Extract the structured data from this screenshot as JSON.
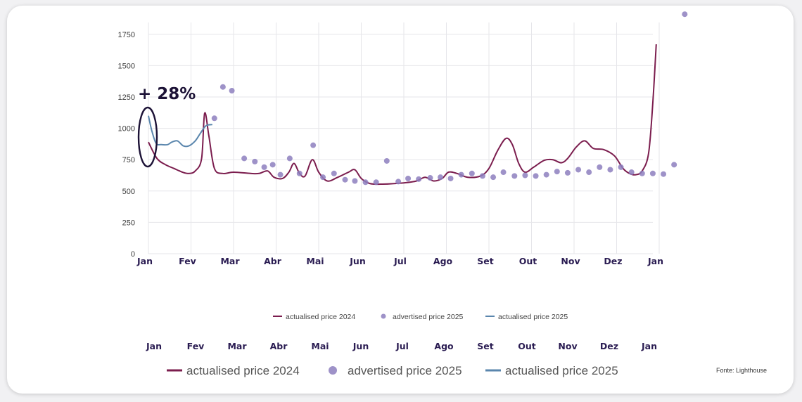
{
  "colors": {
    "actualised_2024": "#7b1d4e",
    "advertised_2025": "#8d7fbe",
    "actualised_2025": "#5a86ad",
    "month_text": "#2a1c52"
  },
  "annotation": "+ 28%",
  "source": "Fonte: Lighthouse",
  "months_secondary": [
    "Jan",
    "Fev",
    "Mar",
    "Abr",
    "Mai",
    "Jun",
    "Jul",
    "Ago",
    "Set",
    "Out",
    "Nov",
    "Dez",
    "Jan"
  ],
  "legend_secondary": [
    "actualised price 2024",
    "advertised price 2025",
    "actualised price 2025"
  ],
  "chart_data": {
    "type": "line",
    "title": "",
    "xlabel": "",
    "ylabel": "",
    "ylim": [
      0,
      1900
    ],
    "yticks": [
      0,
      250,
      500,
      750,
      1000,
      1250,
      1500,
      1750
    ],
    "categories": [
      "Jan",
      "Fev",
      "Mar",
      "Abr",
      "Mai",
      "Jun",
      "Jul",
      "Ago",
      "Set",
      "Out",
      "Nov",
      "Dez",
      "Jan"
    ],
    "grid": true,
    "legend_position": "bottom",
    "series": [
      {
        "name": "actualised price 2024",
        "style": "line",
        "points": [
          [
            0,
            890
          ],
          [
            0.2,
            760
          ],
          [
            0.4,
            710
          ],
          [
            0.6,
            680
          ],
          [
            0.8,
            650
          ],
          [
            0.95,
            640
          ],
          [
            1.1,
            660
          ],
          [
            1.25,
            760
          ],
          [
            1.32,
            1120
          ],
          [
            1.42,
            940
          ],
          [
            1.55,
            680
          ],
          [
            1.75,
            640
          ],
          [
            2.0,
            650
          ],
          [
            2.4,
            640
          ],
          [
            2.6,
            640
          ],
          [
            2.8,
            660
          ],
          [
            2.95,
            610
          ],
          [
            3.15,
            600
          ],
          [
            3.3,
            650
          ],
          [
            3.42,
            720
          ],
          [
            3.55,
            640
          ],
          [
            3.68,
            620
          ],
          [
            3.85,
            750
          ],
          [
            4.0,
            650
          ],
          [
            4.2,
            580
          ],
          [
            4.45,
            610
          ],
          [
            4.7,
            650
          ],
          [
            4.85,
            670
          ],
          [
            5.0,
            600
          ],
          [
            5.2,
            560
          ],
          [
            5.5,
            555
          ],
          [
            6.0,
            565
          ],
          [
            6.3,
            580
          ],
          [
            6.5,
            610
          ],
          [
            6.7,
            580
          ],
          [
            6.9,
            600
          ],
          [
            7.05,
            650
          ],
          [
            7.25,
            640
          ],
          [
            7.5,
            610
          ],
          [
            7.8,
            620
          ],
          [
            8.0,
            680
          ],
          [
            8.2,
            820
          ],
          [
            8.4,
            920
          ],
          [
            8.55,
            870
          ],
          [
            8.7,
            720
          ],
          [
            8.85,
            650
          ],
          [
            9.05,
            690
          ],
          [
            9.3,
            745
          ],
          [
            9.5,
            750
          ],
          [
            9.7,
            725
          ],
          [
            9.85,
            760
          ],
          [
            10.05,
            850
          ],
          [
            10.25,
            900
          ],
          [
            10.45,
            840
          ],
          [
            10.7,
            830
          ],
          [
            10.95,
            780
          ],
          [
            11.15,
            680
          ],
          [
            11.3,
            640
          ],
          [
            11.45,
            630
          ],
          [
            11.6,
            660
          ],
          [
            11.75,
            800
          ],
          [
            11.85,
            1200
          ],
          [
            11.93,
            1670
          ]
        ]
      },
      {
        "name": "advertised price 2025",
        "style": "scatter",
        "points": [
          [
            1.55,
            1080
          ],
          [
            1.75,
            1330
          ],
          [
            1.96,
            1300
          ],
          [
            2.25,
            760
          ],
          [
            2.5,
            735
          ],
          [
            2.72,
            690
          ],
          [
            2.92,
            710
          ],
          [
            3.1,
            630
          ],
          [
            3.32,
            760
          ],
          [
            3.55,
            640
          ],
          [
            3.87,
            865
          ],
          [
            4.1,
            610
          ],
          [
            4.36,
            640
          ],
          [
            4.62,
            590
          ],
          [
            4.85,
            580
          ],
          [
            5.1,
            570
          ],
          [
            5.35,
            570
          ],
          [
            5.6,
            740
          ],
          [
            5.87,
            575
          ],
          [
            6.1,
            600
          ],
          [
            6.35,
            595
          ],
          [
            6.62,
            605
          ],
          [
            6.86,
            610
          ],
          [
            7.1,
            600
          ],
          [
            7.35,
            630
          ],
          [
            7.6,
            640
          ],
          [
            7.85,
            620
          ],
          [
            8.1,
            610
          ],
          [
            8.34,
            650
          ],
          [
            8.6,
            620
          ],
          [
            8.85,
            625
          ],
          [
            9.1,
            620
          ],
          [
            9.35,
            630
          ],
          [
            9.6,
            655
          ],
          [
            9.85,
            645
          ],
          [
            10.1,
            670
          ],
          [
            10.35,
            650
          ],
          [
            10.6,
            690
          ],
          [
            10.85,
            670
          ],
          [
            11.1,
            690
          ],
          [
            11.35,
            650
          ],
          [
            11.6,
            640
          ],
          [
            11.85,
            640
          ],
          [
            12.1,
            635
          ],
          [
            12.35,
            710
          ],
          [
            12.6,
            1910
          ]
        ]
      },
      {
        "name": "actualised price 2025",
        "style": "line",
        "points": [
          [
            0,
            1100
          ],
          [
            0.08,
            980
          ],
          [
            0.18,
            880
          ],
          [
            0.3,
            870
          ],
          [
            0.45,
            870
          ],
          [
            0.55,
            890
          ],
          [
            0.68,
            900
          ],
          [
            0.82,
            860
          ],
          [
            0.95,
            860
          ],
          [
            1.1,
            900
          ],
          [
            1.22,
            960
          ],
          [
            1.35,
            1020
          ],
          [
            1.5,
            1030
          ]
        ]
      }
    ]
  }
}
